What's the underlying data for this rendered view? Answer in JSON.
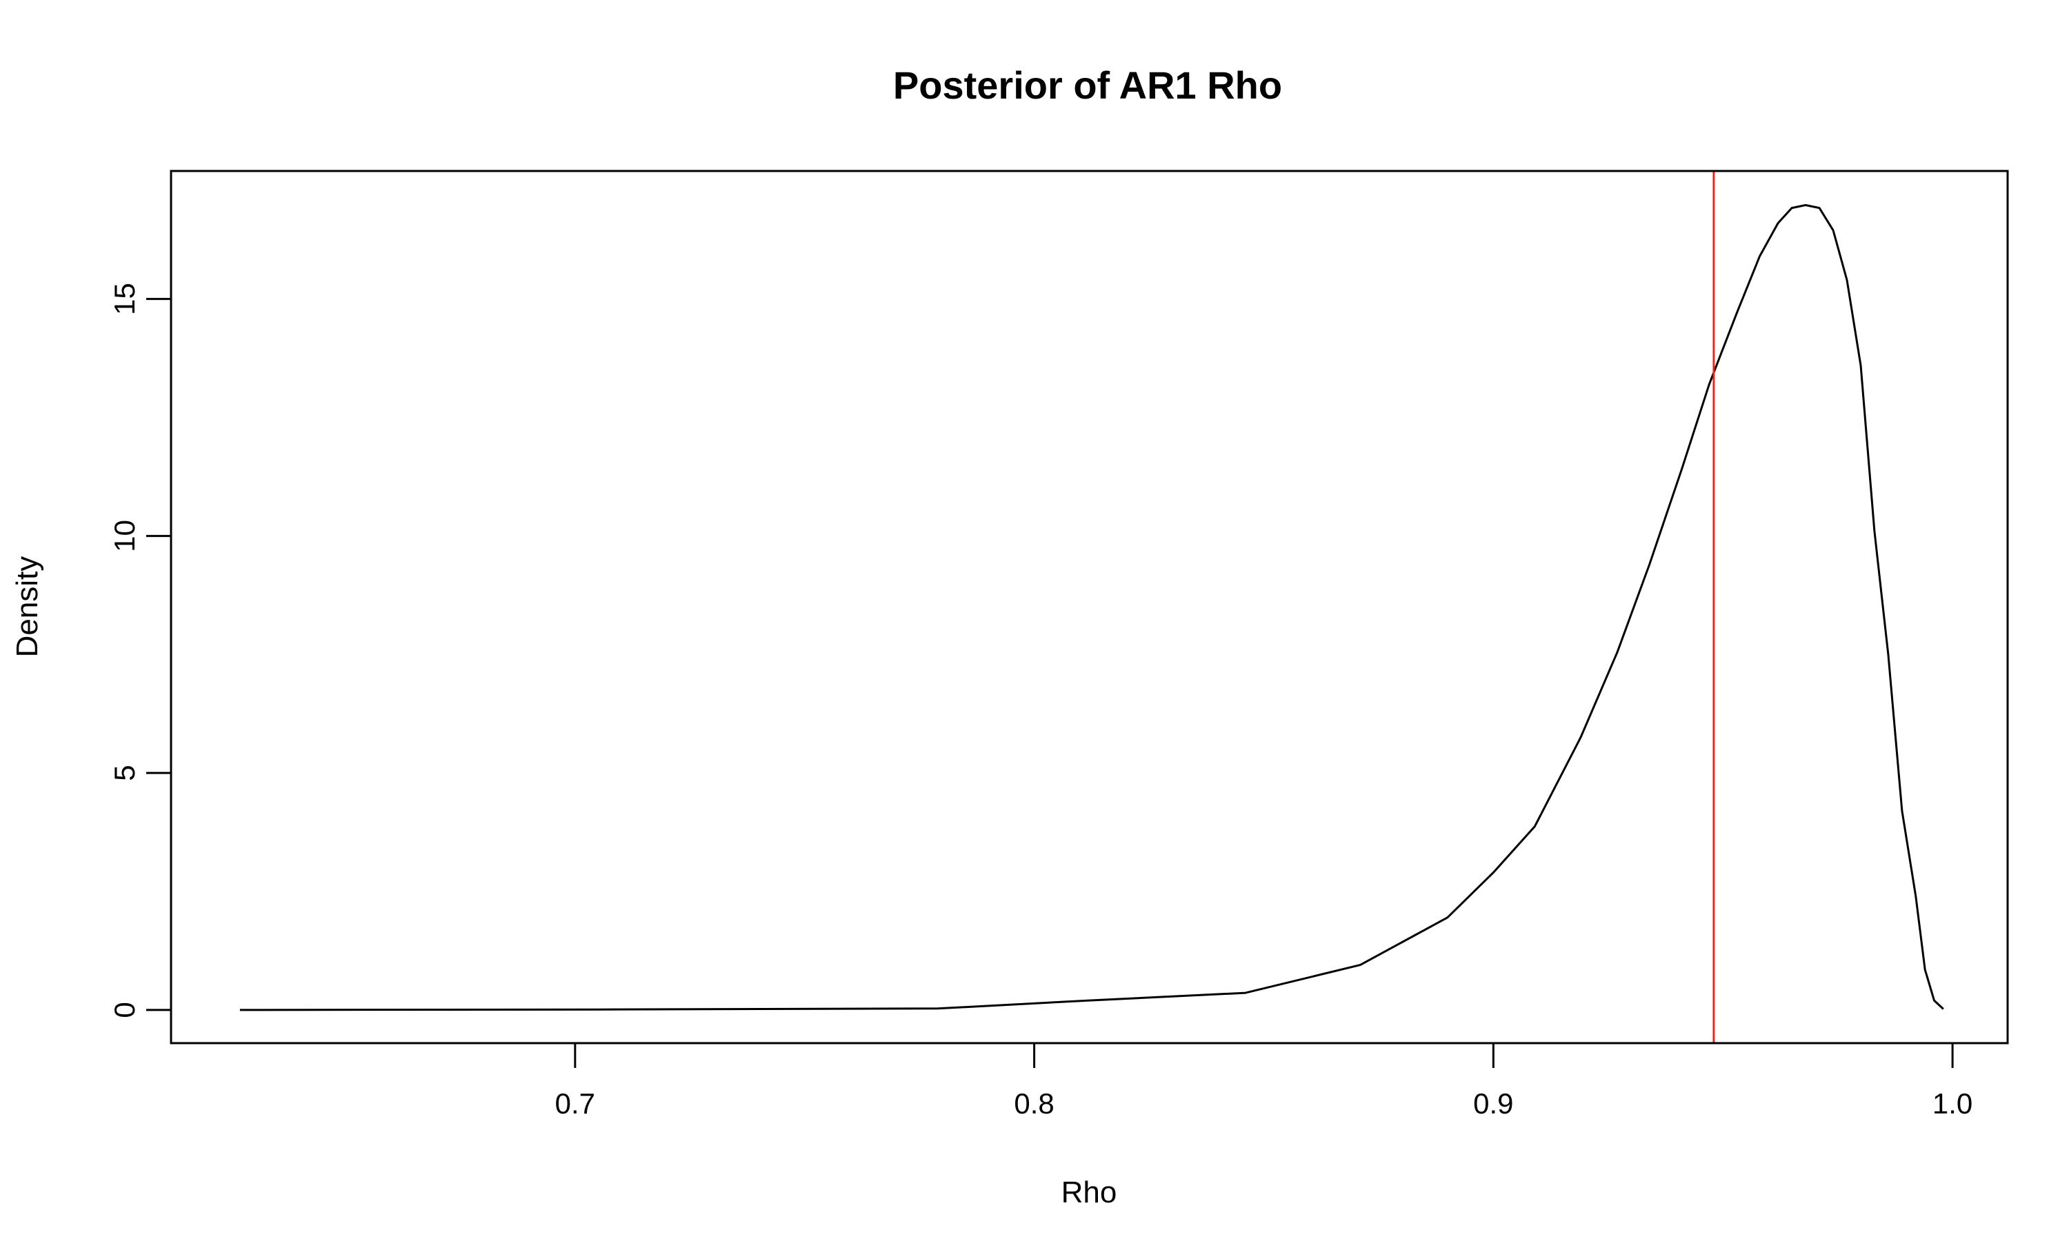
{
  "chart_data": {
    "type": "line",
    "title": "Posterior of AR1 Rho",
    "xlabel": "Rho",
    "ylabel": "Density",
    "xlim": [
      0.612,
      1.012
    ],
    "ylim": [
      -0.7,
      17.7
    ],
    "x_ticks": [
      0.7,
      0.8,
      0.9,
      1.0
    ],
    "x_tick_labels": [
      "0.7",
      "0.8",
      "0.9",
      "1.0"
    ],
    "y_ticks": [
      0,
      5,
      10,
      15
    ],
    "y_tick_labels": [
      "0",
      "5",
      "10",
      "15"
    ],
    "grid": false,
    "legend": "none",
    "series": [
      {
        "color": "#000000",
        "x": [
          0.627,
          0.705,
          0.779,
          0.812,
          0.846,
          0.871,
          0.89,
          0.9,
          0.909,
          0.919,
          0.927,
          0.934,
          0.941,
          0.947,
          0.953,
          0.958,
          0.962,
          0.965,
          0.968,
          0.971,
          0.974,
          0.977,
          0.98,
          0.983,
          0.986,
          0.989,
          0.992,
          0.994,
          0.996,
          0.998
        ],
        "y": [
          0.0,
          0.01,
          0.03,
          0.2,
          0.36,
          0.95,
          1.95,
          2.9,
          3.87,
          5.75,
          7.55,
          9.4,
          11.4,
          13.2,
          14.7,
          15.9,
          16.6,
          16.92,
          16.98,
          16.92,
          16.45,
          15.4,
          13.6,
          10.1,
          7.5,
          4.2,
          2.4,
          0.85,
          0.2,
          0.02
        ]
      }
    ],
    "reference_lines": [
      {
        "orientation": "vertical",
        "x": 0.948,
        "color": "#e8281e"
      }
    ]
  }
}
